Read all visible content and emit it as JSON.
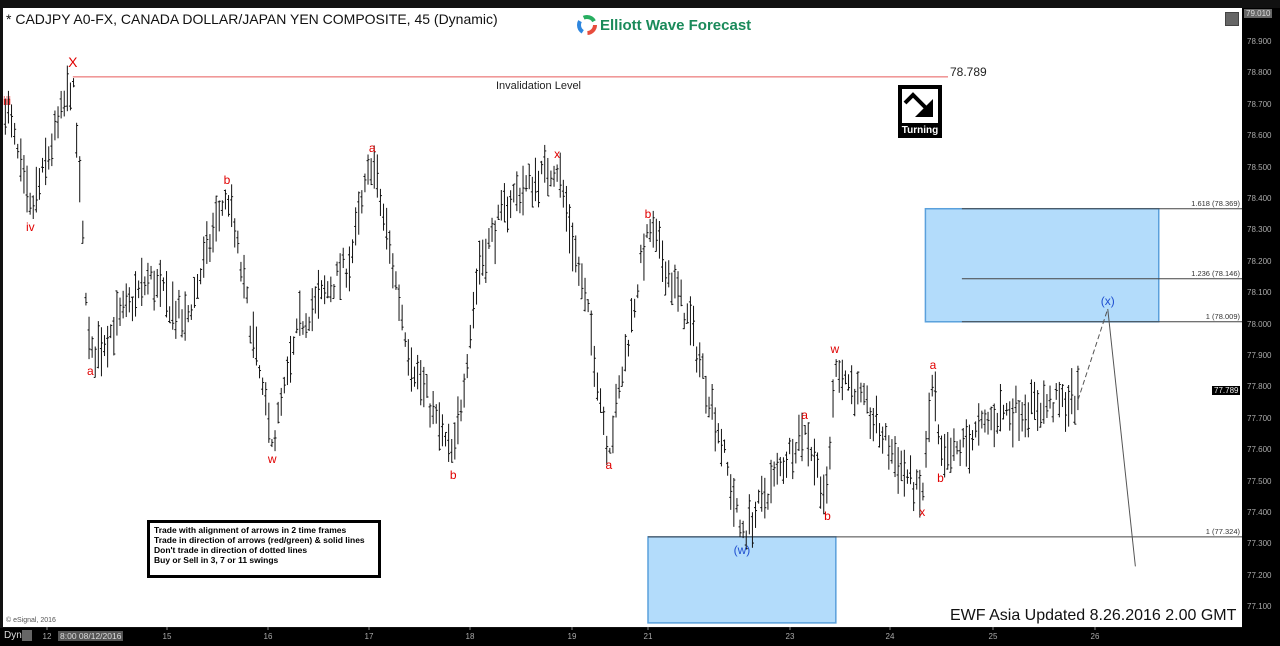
{
  "header": {
    "title": "* CADJPY A0-FX, CANADA DOLLAR/JAPAN YEN COMPOSITE, 45 (Dynamic)",
    "logo_text": "Elliott Wave Forecast"
  },
  "badge": {
    "label": "Turning",
    "icon": "arrow-down-right-icon"
  },
  "rules": [
    "Trade with alignment of arrows in 2 time frames",
    "Trade in direction of arrows (red/green) & solid lines",
    "Don't trade in direction of dotted lines",
    "Buy or Sell in 3, 7 or 11 swings"
  ],
  "footer": {
    "updated": "EWF Asia Updated 8.26.2016 2.00 GMT",
    "copyright": "© eSignal, 2016",
    "mode": "Dyn",
    "cursor_date": "8:00 08/12/2016"
  },
  "colors": {
    "wave_red": "#e00000",
    "wave_blue": "#1f4fd0",
    "zone_fill": "#b3dcfb",
    "zone_border": "#5aa0dc",
    "invalidation": "#e85a5a",
    "logo_green": "#1a8a5a"
  },
  "chart_data": {
    "type": "ohlc",
    "title": "* CADJPY A0-FX, CANADA DOLLAR/JAPAN YEN COMPOSITE, 45 (Dynamic)",
    "interval": "45 min",
    "ylim": [
      77.05,
      79.01
    ],
    "y_ticks": [
      "79.010",
      "78.900",
      "78.800",
      "78.700",
      "78.600",
      "78.500",
      "78.400",
      "78.300",
      "78.200",
      "78.100",
      "78.000",
      "77.900",
      "77.800",
      "77.700",
      "77.600",
      "77.500",
      "77.400",
      "77.300",
      "77.200",
      "77.100"
    ],
    "last_price": "77.789",
    "x_ticks": [
      {
        "label": "12",
        "date": "2016-08-12"
      },
      {
        "label": "15",
        "date": "2016-08-15"
      },
      {
        "label": "16",
        "date": "2016-08-16"
      },
      {
        "label": "17",
        "date": "2016-08-17"
      },
      {
        "label": "18",
        "date": "2016-08-18"
      },
      {
        "label": "19",
        "date": "2016-08-19"
      },
      {
        "label": "21",
        "date": "2016-08-21"
      },
      {
        "label": "23",
        "date": "2016-08-23"
      },
      {
        "label": "24",
        "date": "2016-08-24"
      },
      {
        "label": "25",
        "date": "2016-08-25"
      },
      {
        "label": "26",
        "date": "2016-08-26"
      }
    ],
    "price_path": [
      {
        "t": "2016-08-10T23:00",
        "p": 78.72,
        "label": "iii",
        "kind": "high",
        "color": "red"
      },
      {
        "t": "2016-08-11T14:00",
        "p": 78.35,
        "label": "iv",
        "kind": "low",
        "color": "red"
      },
      {
        "t": "2016-08-12T15:30",
        "p": 78.785,
        "label": "X",
        "kind": "high",
        "color": "red"
      },
      {
        "t": "2016-08-13T02:00",
        "p": 77.89,
        "label": "a",
        "kind": "low",
        "color": "red"
      },
      {
        "t": "2016-08-14T13:45",
        "p": 78.15
      },
      {
        "t": "2016-08-15T04:15",
        "p": 78.0
      },
      {
        "t": "2016-08-15T14:15",
        "p": 78.43,
        "label": "b",
        "kind": "high",
        "color": "red"
      },
      {
        "t": "2016-08-16T01:00",
        "p": 77.61,
        "label": "w",
        "kind": "low",
        "color": "red"
      },
      {
        "t": "2016-08-16T07:30",
        "p": 78.0
      },
      {
        "t": "2016-08-16T19:30",
        "p": 78.2
      },
      {
        "t": "2016-08-17T00:45",
        "p": 78.53,
        "label": "a",
        "kind": "high",
        "color": "red"
      },
      {
        "t": "2016-08-17T09:45",
        "p": 77.9
      },
      {
        "t": "2016-08-17T20:00",
        "p": 77.56,
        "label": "b",
        "kind": "low",
        "color": "red"
      },
      {
        "t": "2016-08-18T02:15",
        "p": 78.2
      },
      {
        "t": "2016-08-18T09:30",
        "p": 78.4
      },
      {
        "t": "2016-08-18T20:30",
        "p": 78.51,
        "label": "x",
        "kind": "high",
        "color": "red"
      },
      {
        "t": "2016-08-19T11:15",
        "p": 78.0
      },
      {
        "t": "2016-08-19T23:15",
        "p": 77.59,
        "label": "a",
        "kind": "low",
        "color": "red"
      },
      {
        "t": "2016-08-20T06:15",
        "p": 77.8
      },
      {
        "t": "2016-08-21T00:00",
        "p": 78.32,
        "label": "b",
        "kind": "high",
        "color": "red"
      },
      {
        "t": "2016-08-21T14:15",
        "p": 78.0
      },
      {
        "t": "2016-08-22T00:15",
        "p": 77.65
      },
      {
        "t": "2016-08-22T07:45",
        "p": 77.32,
        "label": "(w)",
        "kind": "low",
        "color": "blue"
      },
      {
        "t": "2016-08-23T03:30",
        "p": 77.68,
        "label": "a",
        "kind": "high",
        "color": "red"
      },
      {
        "t": "2016-08-23T09:00",
        "p": 77.43,
        "label": "b",
        "kind": "low",
        "color": "red"
      },
      {
        "t": "2016-08-23T10:45",
        "p": 77.89,
        "label": "w",
        "kind": "high",
        "color": "red"
      },
      {
        "t": "2016-08-24T07:30",
        "p": 77.44,
        "label": "x",
        "kind": "low",
        "color": "red"
      },
      {
        "t": "2016-08-24T10:00",
        "p": 77.84,
        "label": "a",
        "kind": "high",
        "color": "red"
      },
      {
        "t": "2016-08-24T11:45",
        "p": 77.55,
        "label": "b",
        "kind": "low",
        "color": "red"
      },
      {
        "t": "2016-08-25T01:45",
        "p": 77.72
      },
      {
        "t": "2016-08-25T20:00",
        "p": 77.76
      }
    ],
    "projection": [
      {
        "t": "2016-08-25T20:00",
        "p": 77.76,
        "style": "dashed"
      },
      {
        "t": "2016-08-26T03:00",
        "p": 78.05,
        "label": "(x)",
        "color": "blue",
        "style": "solid"
      },
      {
        "t": "2016-08-26T09:30",
        "p": 77.23
      }
    ],
    "invalidation": {
      "value": 78.789,
      "value_label": "78.789",
      "label": "Invalidation Level",
      "from": "2016-08-12T15:30"
    },
    "zones": [
      {
        "from": "2016-08-24T08:15",
        "to": "2016-08-26T15:00",
        "top": 78.369,
        "bottom": 78.009
      },
      {
        "from": "2016-08-21T00:00",
        "to": "2016-08-23T11:00",
        "top": 77.324,
        "bottom": 77.05
      }
    ],
    "fib_levels": [
      {
        "label": "1.618 (78.369)",
        "value": 78.369,
        "from": "2016-08-24T16:45"
      },
      {
        "label": "1.236 (78.146)",
        "value": 78.146,
        "from": "2016-08-24T16:45"
      },
      {
        "label": "1 (78.009)",
        "value": 78.009,
        "from": "2016-08-24T16:45"
      },
      {
        "label": "1 (77.324)",
        "value": 77.324,
        "from": "2016-08-21T00:00"
      }
    ]
  }
}
